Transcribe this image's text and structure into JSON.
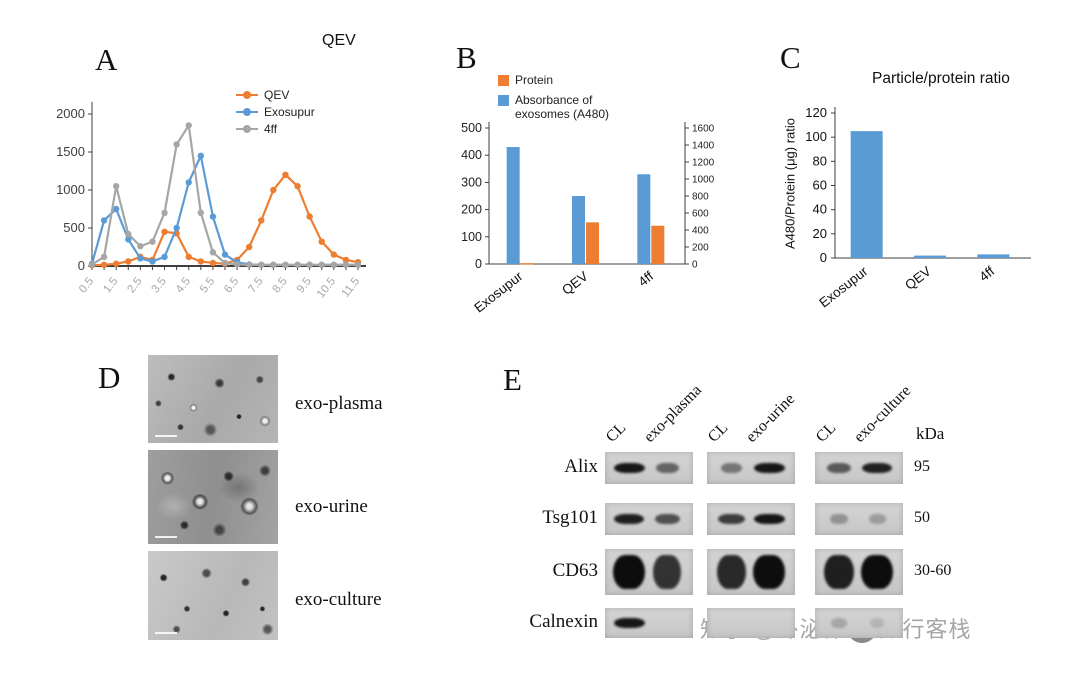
{
  "figure": {
    "panel_letters": {
      "a": "A",
      "b": "B",
      "c": "C",
      "d": "D",
      "e": "E"
    }
  },
  "chartA": {
    "type": "line",
    "title": "QEV",
    "x": [
      0.5,
      1,
      1.5,
      2,
      2.5,
      3,
      3.5,
      4,
      4.5,
      5,
      5.5,
      6,
      6.5,
      7,
      7.5,
      8,
      8.5,
      9,
      9.5,
      10,
      10.5,
      11,
      11.5
    ],
    "x_tick_labels": [
      "0.5",
      "1.5",
      "2.5",
      "3.5",
      "4.5",
      "5.5",
      "6.5",
      "7.5",
      "8.5",
      "9.5",
      "10.5",
      "11.5"
    ],
    "ylim": [
      0,
      2000
    ],
    "yticks": [
      0,
      500,
      1000,
      1500,
      2000
    ],
    "series": [
      {
        "name": "QEV",
        "color": "#ED7D31",
        "values": [
          10,
          15,
          30,
          60,
          120,
          80,
          450,
          430,
          120,
          60,
          40,
          30,
          80,
          250,
          600,
          1000,
          1200,
          1050,
          650,
          320,
          150,
          80,
          50
        ]
      },
      {
        "name": "Exosupur",
        "color": "#5B9BD5",
        "values": [
          30,
          600,
          750,
          350,
          100,
          60,
          120,
          500,
          1100,
          1450,
          650,
          150,
          50,
          20,
          15,
          15,
          15,
          15,
          15,
          15,
          15,
          15,
          15
        ]
      },
      {
        "name": "4ff",
        "color": "#A6A6A6",
        "values": [
          20,
          120,
          1050,
          420,
          260,
          320,
          700,
          1600,
          1850,
          700,
          180,
          40,
          20,
          15,
          15,
          15,
          15,
          15,
          15,
          15,
          15,
          15,
          15
        ]
      }
    ]
  },
  "chartB": {
    "type": "bar",
    "categories": [
      "Exosupur",
      "QEV",
      "4ff"
    ],
    "left_axis": {
      "lim": [
        0,
        500
      ],
      "ticks": [
        0,
        100,
        200,
        300,
        400,
        500
      ]
    },
    "right_axis": {
      "lim": [
        0,
        1600
      ],
      "ticks": [
        0,
        200,
        400,
        600,
        800,
        1000,
        1200,
        1400,
        1600
      ]
    },
    "series": [
      {
        "name": "Protein",
        "color": "#ED7D31",
        "axis": "right",
        "slot": 1,
        "values": [
          10,
          490,
          450
        ]
      },
      {
        "name": "Absorbance of exosomes (A480)",
        "color": "#5B9BD5",
        "axis": "left",
        "slot": 0,
        "values": [
          430,
          250,
          330
        ]
      }
    ]
  },
  "chartC": {
    "type": "bar",
    "title": "Particle/protein ratio",
    "ylabel": "A480/Protein (μg) ratio",
    "categories": [
      "Exosupur",
      "QEV",
      "4ff"
    ],
    "values": [
      105,
      2,
      3
    ],
    "ylim": [
      0,
      120
    ],
    "yticks": [
      0,
      20,
      40,
      60,
      80,
      100,
      120
    ],
    "bar_color": "#5B9BD5"
  },
  "panelD": {
    "labels": [
      "exo-plasma",
      "exo-urine",
      "exo-culture"
    ]
  },
  "western_blot": {
    "col_headers": [
      "CL",
      "exo-plasma",
      "CL",
      "exo-urine",
      "CL",
      "exo-culture"
    ],
    "kda_header": "kDa",
    "rows": [
      {
        "label": "Alix",
        "kda": "95",
        "tall": false,
        "membranes": [
          [
            0.95,
            0.55
          ],
          [
            0.45,
            0.95
          ],
          [
            0.6,
            0.9
          ]
        ]
      },
      {
        "label": "Tsg101",
        "kda": "50",
        "tall": false,
        "membranes": [
          [
            0.9,
            0.65
          ],
          [
            0.75,
            0.95
          ],
          [
            0.3,
            0.25
          ]
        ]
      },
      {
        "label": "CD63",
        "kda": "30-60",
        "tall": true,
        "membranes": [
          [
            1,
            0.8
          ],
          [
            0.85,
            1
          ],
          [
            0.9,
            1
          ]
        ]
      },
      {
        "label": "Calnexin",
        "kda": "",
        "tall": false,
        "membranes": [
          [
            0.95,
            0
          ],
          [
            0,
            0
          ],
          [
            0.2,
            0.12
          ]
        ]
      }
    ]
  },
  "watermark": {
    "prefix": "知乎 @外泌体",
    "suffix": "知行客栈"
  }
}
